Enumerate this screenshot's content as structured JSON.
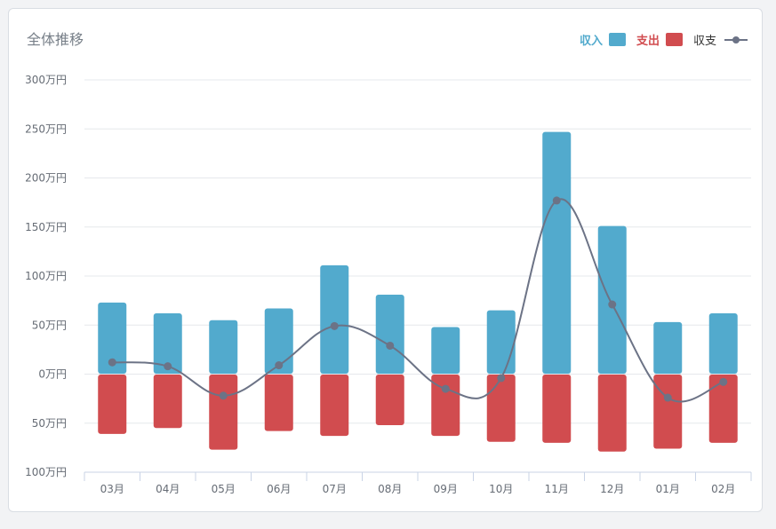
{
  "title": "全体推移",
  "colors": {
    "income": "#52aacd",
    "expense": "#d14c4f",
    "balance": "#6c7386",
    "grid": "#e6e8ec",
    "axis": "#c9d3e6"
  },
  "legend": {
    "income": "収入",
    "expense": "支出",
    "balance": "収支"
  },
  "chart_data": {
    "type": "bar",
    "title": "全体推移",
    "categories": [
      "03月",
      "04月",
      "05月",
      "06月",
      "07月",
      "08月",
      "09月",
      "10月",
      "11月",
      "12月",
      "01月",
      "02月"
    ],
    "series": [
      {
        "name": "収入",
        "type": "bar",
        "values": [
          73,
          62,
          55,
          67,
          111,
          81,
          48,
          65,
          247,
          151,
          53,
          62
        ]
      },
      {
        "name": "支出",
        "type": "bar",
        "values": [
          -61,
          -55,
          -77,
          -58,
          -63,
          -52,
          -63,
          -69,
          -70,
          -79,
          -76,
          -70
        ]
      },
      {
        "name": "収支",
        "type": "line",
        "values": [
          12,
          8,
          -22,
          9,
          49,
          29,
          -15,
          -4,
          177,
          71,
          -24,
          -8
        ]
      }
    ],
    "y_ticks": [
      "300万円",
      "250万円",
      "200万円",
      "150万円",
      "100万円",
      "50万円",
      "0万円",
      "50万円",
      "100万円"
    ],
    "ylim": [
      -100,
      300
    ],
    "grid": true,
    "legend_position": "top-right"
  }
}
